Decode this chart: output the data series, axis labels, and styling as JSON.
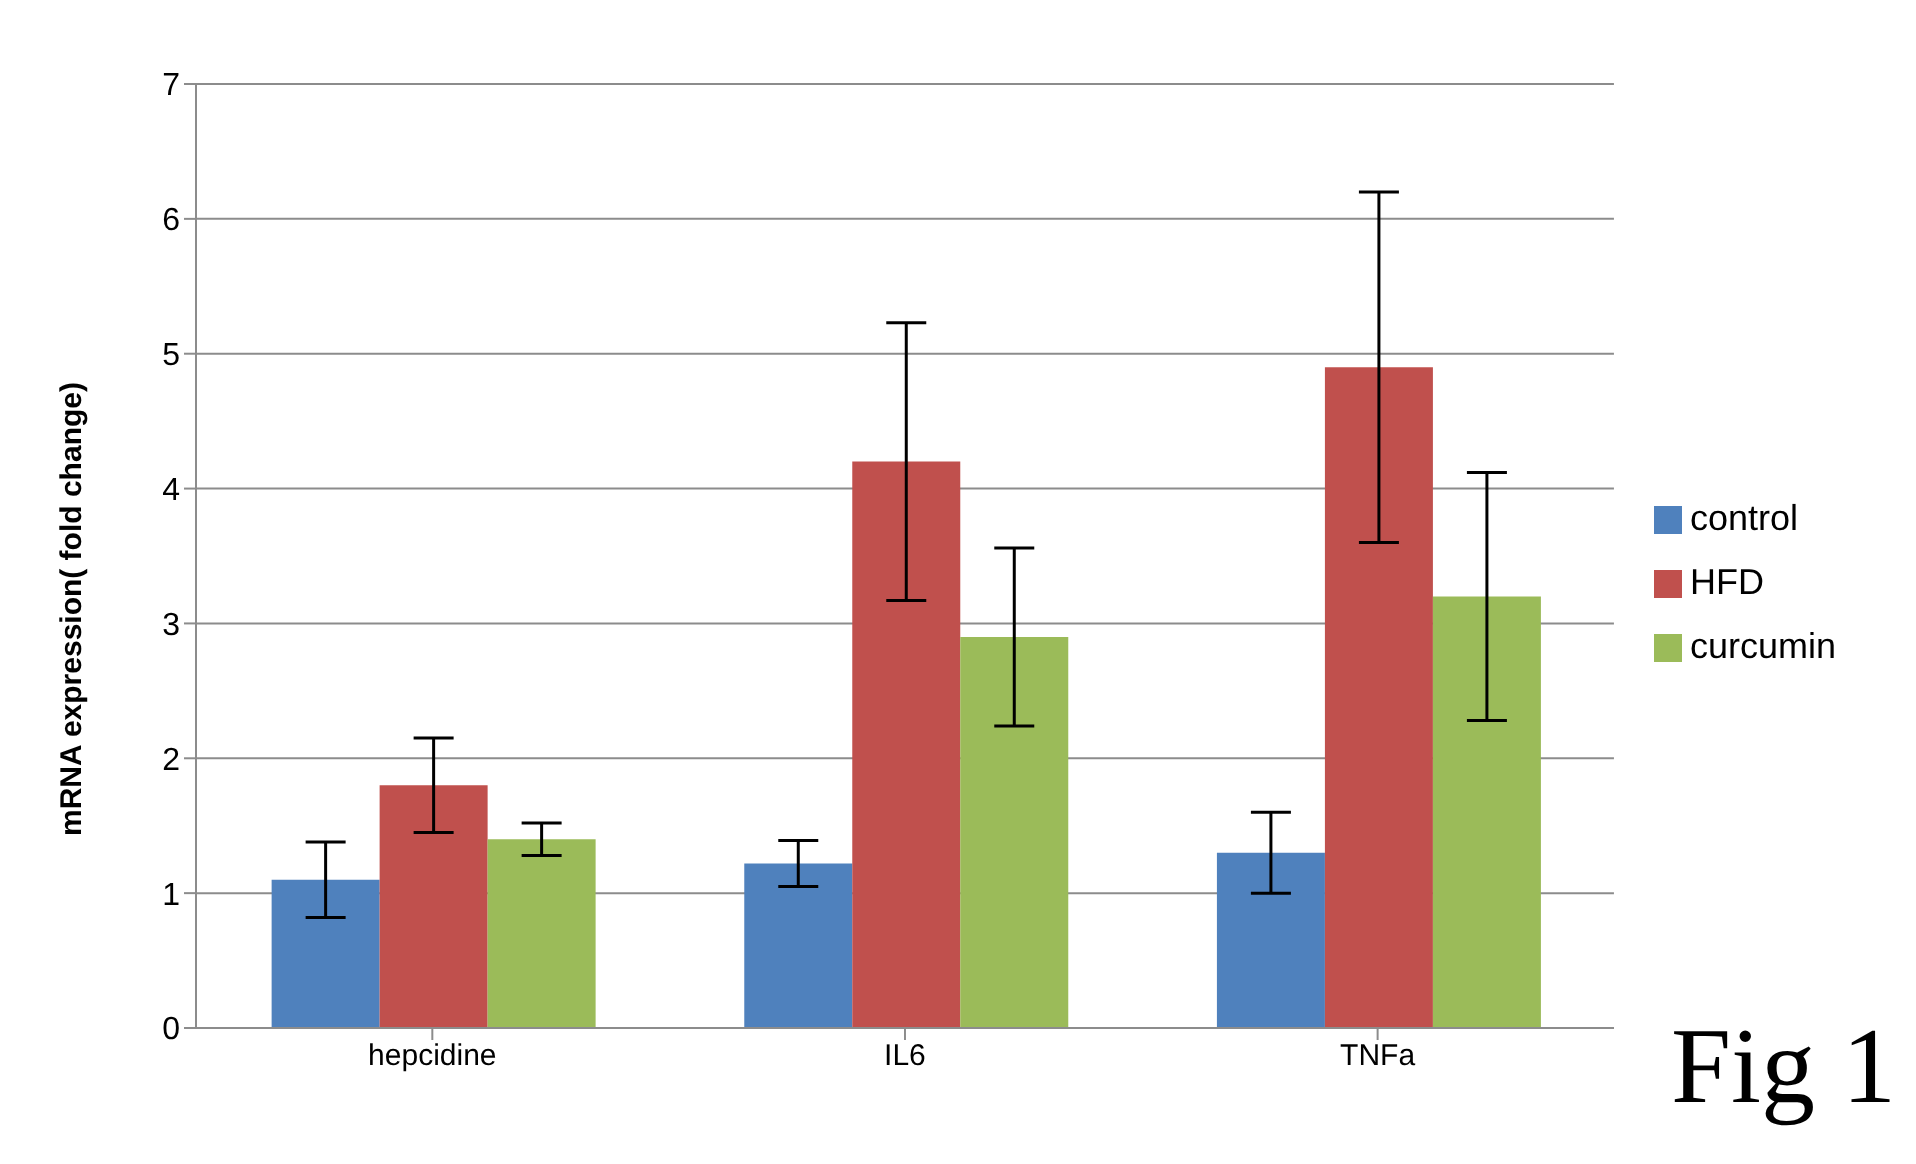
{
  "chart_data": {
    "type": "bar",
    "ylabel": "mRNA expression( fold change)",
    "categories": [
      "hepcidine",
      "IL6",
      "TNFa"
    ],
    "series": [
      {
        "name": "control",
        "color": "#4f81bd",
        "values": [
          1.1,
          1.22,
          1.3
        ],
        "errors": [
          0.28,
          0.17,
          0.3
        ]
      },
      {
        "name": "HFD",
        "color": "#c0504d",
        "values": [
          1.8,
          4.2,
          4.9
        ],
        "errors": [
          0.35,
          1.03,
          1.3
        ]
      },
      {
        "name": "curcumin",
        "color": "#9bbb59",
        "values": [
          1.4,
          2.9,
          3.2
        ],
        "errors": [
          0.12,
          0.66,
          0.92
        ]
      }
    ],
    "ylim": [
      0,
      7
    ],
    "yticks": [
      0,
      1,
      2,
      3,
      4,
      5,
      6,
      7
    ],
    "grid": "y",
    "legend": "right",
    "annotations": [
      "Fig 1"
    ]
  }
}
